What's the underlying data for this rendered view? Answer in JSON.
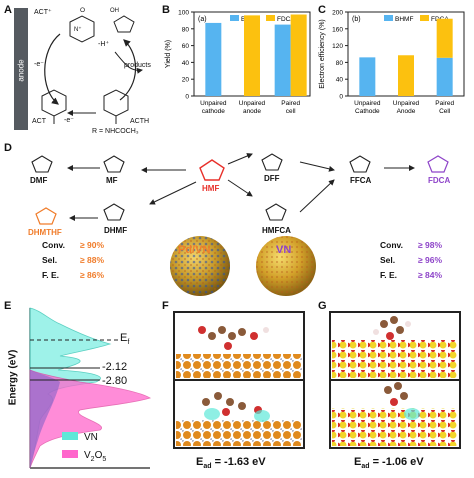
{
  "panels": {
    "A": "A",
    "B": "B",
    "C": "C",
    "D": "D",
    "E": "E",
    "F": "F",
    "G": "G"
  },
  "panel_a": {
    "anode": "anode",
    "act_plus": "ACT⁺",
    "act": "ACT",
    "acth": "ACTH",
    "products": "products",
    "h_plus": "-H⁺",
    "e1": "-e⁻",
    "e2": "-e⁻",
    "r_group": "R = NHCOCH₃",
    "n_plus": "N⁺",
    "oh": "OH",
    "o": "O"
  },
  "chart_b": {
    "type": "bar",
    "sublabel": "(a)",
    "ylabel": "Yield (%)",
    "ylim": [
      0,
      100
    ],
    "yticks": [
      0,
      20,
      40,
      60,
      80,
      100
    ],
    "categories": [
      "Unpaired\ncathode",
      "Unpaired\nanode",
      "Paired\ncell"
    ],
    "series": [
      {
        "name": "BHMF",
        "color": "#56b4f0",
        "values": [
          87,
          null,
          85
        ]
      },
      {
        "name": "FDCA",
        "color": "#fcc10f",
        "values": [
          null,
          96,
          97
        ]
      }
    ]
  },
  "chart_c": {
    "type": "bar",
    "sublabel": "(b)",
    "ylabel": "Electron efficiency (%)",
    "ylim": [
      0,
      200
    ],
    "yticks": [
      0,
      40,
      80,
      120,
      160,
      200
    ],
    "categories": [
      "Unpaired\nCathode",
      "Unpaired\nAnode",
      "Paired\nCell"
    ],
    "series": [
      {
        "name": "BHMF",
        "color": "#56b4f0",
        "values": [
          92,
          0,
          91
        ]
      },
      {
        "name": "FDCA",
        "color": "#fcc10f",
        "values": [
          0,
          97,
          93
        ]
      }
    ]
  },
  "panel_d": {
    "molecules": {
      "dmf": "DMF",
      "mf": "MF",
      "hmf": "HMF",
      "dff": "DFF",
      "ffca": "FFCA",
      "fdca": "FDCA",
      "dhmthf": "DHMTHF",
      "dhmf": "DHMF",
      "hmfca": "HMFCA"
    },
    "catalyst_left": "Pd/VN",
    "catalyst_right": "VN",
    "left_stats": [
      {
        "label": "Conv.",
        "value": "≥ 90%"
      },
      {
        "label": "Sel.",
        "value": "≥ 88%"
      },
      {
        "label": "F. E.",
        "value": "≥ 86%"
      }
    ],
    "right_stats": [
      {
        "label": "Conv.",
        "value": "≥ 98%"
      },
      {
        "label": "Sel.",
        "value": "≥ 96%"
      },
      {
        "label": "F. E.",
        "value": "≥ 84%"
      }
    ],
    "colors": {
      "hmf": "#e8302a",
      "fdca": "#8e44c9",
      "dhmthf": "#f07c2a",
      "pdvn": "#f07c2a",
      "vn": "#8e44c9"
    }
  },
  "panel_e": {
    "ylabel": "Energy (eV)",
    "ef": "E",
    "ef_sub": "f",
    "level1": "-2.12",
    "level2": "-2.80",
    "legend": [
      {
        "name": "VN",
        "color": "#5ee8d8"
      },
      {
        "name": "V",
        "sub1": "2",
        "mid": "O",
        "sub2": "5",
        "color": "#ff66cc"
      }
    ]
  },
  "panel_f": {
    "ead_label": "E",
    "ead_sub": "ad",
    "ead_value": " = -1.63 eV"
  },
  "panel_g": {
    "ead_label": "E",
    "ead_sub": "ad",
    "ead_value": " = -1.06 eV"
  }
}
